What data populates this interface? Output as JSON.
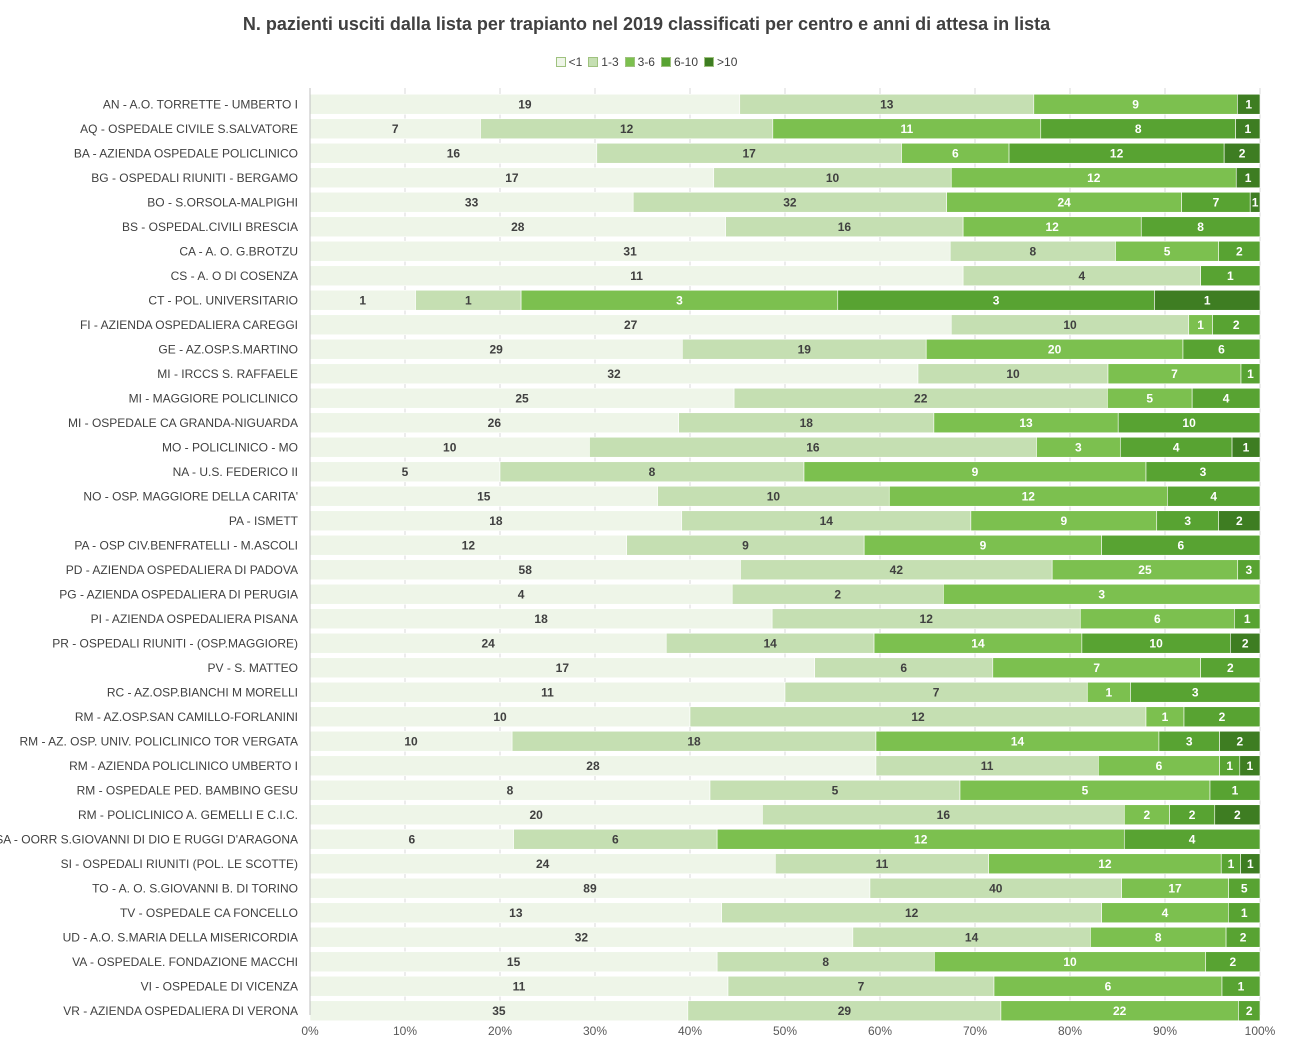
{
  "chart_data": {
    "type": "bar",
    "orientation": "horizontal",
    "stacked": "percent",
    "title": "N. pazienti usciti dalla lista per trapianto nel 2019 classificati per centro e anni di attesa in lista",
    "legend_position": "top",
    "xlim": [
      0,
      100
    ],
    "x_ticks": [
      "0%",
      "10%",
      "20%",
      "30%",
      "40%",
      "50%",
      "60%",
      "70%",
      "80%",
      "90%",
      "100%"
    ],
    "grid": true,
    "series_colors": [
      "#eef5e8",
      "#c5dfb2",
      "#7cc04f",
      "#58a332",
      "#3e7d22"
    ],
    "label_colors": [
      "#404040",
      "#404040",
      "#ffffff",
      "#ffffff",
      "#ffffff"
    ],
    "series_names": [
      "<1",
      "1-3",
      "3-6",
      "6-10",
      ">10"
    ],
    "categories": [
      "AN  -  A.O. TORRETTE - UMBERTO I",
      "AQ  -  OSPEDALE CIVILE S.SALVATORE",
      "BA  -  AZIENDA OSPEDALE POLICLINICO",
      "BG  -  OSPEDALI RIUNITI - BERGAMO",
      "BO  -  S.ORSOLA-MALPIGHI",
      "BS  -  OSPEDAL.CIVILI BRESCIA",
      "CA  -  A. O. G.BROTZU",
      "CS  -  A. O DI COSENZA",
      "CT  -  POL. UNIVERSITARIO",
      "FI  -  AZIENDA OSPEDALIERA CAREGGI",
      "GE  -  AZ.OSP.S.MARTINO",
      "MI  -  IRCCS S. RAFFAELE",
      "MI  -  MAGGIORE POLICLINICO",
      "MI  -  OSPEDALE CA GRANDA-NIGUARDA",
      "MO  -  POLICLINICO - MO",
      "NA  -  U.S. FEDERICO II",
      "NO  -  OSP. MAGGIORE DELLA CARITA'",
      "PA  -  ISMETT",
      "PA  -  OSP CIV.BENFRATELLI - M.ASCOLI",
      "PD  -  AZIENDA OSPEDALIERA DI PADOVA",
      "PG  -  AZIENDA OSPEDALIERA DI PERUGIA",
      "PI  -  AZIENDA OSPEDALIERA PISANA",
      "PR  -  OSPEDALI RIUNITI - (OSP.MAGGIORE)",
      "PV  -  S. MATTEO",
      "RC  -  AZ.OSP.BIANCHI M MORELLI",
      "RM  -  AZ.OSP.SAN CAMILLO-FORLANINI",
      "RM  -  AZ. OSP. UNIV. POLICLINICO TOR VERGATA",
      "RM  -  AZIENDA POLICLINICO UMBERTO I",
      "RM  -  OSPEDALE PED. BAMBINO GESU",
      "RM  -  POLICLINICO A. GEMELLI E C.I.C.",
      "SA - OORR S.GIOVANNI DI DIO E RUGGI D'ARAGONA",
      "SI  -  OSPEDALI RIUNITI (POL. LE SCOTTE)",
      "TO  -  A. O. S.GIOVANNI B. DI TORINO",
      "TV  -  OSPEDALE CA FONCELLO",
      "UD  - A.O. S.MARIA DELLA MISERICORDIA",
      "VA  -  OSPEDALE. FONDAZIONE MACCHI",
      "VI  -  OSPEDALE DI VICENZA",
      "VR  -  AZIENDA OSPEDALIERA DI VERONA"
    ],
    "series": [
      {
        "name": "<1",
        "values": [
          19,
          7,
          16,
          17,
          33,
          28,
          31,
          11,
          1,
          27,
          29,
          32,
          25,
          26,
          10,
          5,
          15,
          18,
          12,
          58,
          4,
          18,
          24,
          17,
          11,
          10,
          10,
          28,
          8,
          20,
          6,
          24,
          89,
          13,
          32,
          15,
          11,
          35
        ]
      },
      {
        "name": "1-3",
        "values": [
          13,
          12,
          17,
          10,
          32,
          16,
          8,
          4,
          1,
          10,
          19,
          10,
          22,
          18,
          16,
          8,
          10,
          14,
          9,
          42,
          2,
          12,
          14,
          6,
          7,
          12,
          18,
          11,
          5,
          16,
          6,
          11,
          40,
          12,
          14,
          8,
          7,
          29
        ]
      },
      {
        "name": "3-6",
        "values": [
          9,
          11,
          6,
          12,
          24,
          12,
          5,
          0,
          3,
          1,
          20,
          7,
          5,
          13,
          3,
          9,
          12,
          9,
          9,
          25,
          3,
          6,
          14,
          7,
          1,
          1,
          14,
          6,
          5,
          2,
          12,
          12,
          17,
          4,
          8,
          10,
          6,
          22
        ]
      },
      {
        "name": "6-10",
        "values": [
          0,
          8,
          12,
          0,
          7,
          8,
          2,
          1,
          3,
          2,
          6,
          1,
          4,
          10,
          4,
          3,
          4,
          3,
          6,
          3,
          0,
          1,
          10,
          2,
          3,
          2,
          3,
          1,
          1,
          2,
          4,
          1,
          5,
          1,
          2,
          2,
          1,
          2
        ]
      },
      {
        "name": ">10",
        "values": [
          1,
          1,
          2,
          1,
          1,
          0,
          0,
          0,
          1,
          0,
          0,
          0,
          0,
          0,
          1,
          0,
          0,
          2,
          0,
          0,
          0,
          0,
          2,
          0,
          0,
          0,
          2,
          1,
          0,
          2,
          0,
          1,
          0,
          0,
          0,
          0,
          0,
          0
        ]
      }
    ]
  }
}
